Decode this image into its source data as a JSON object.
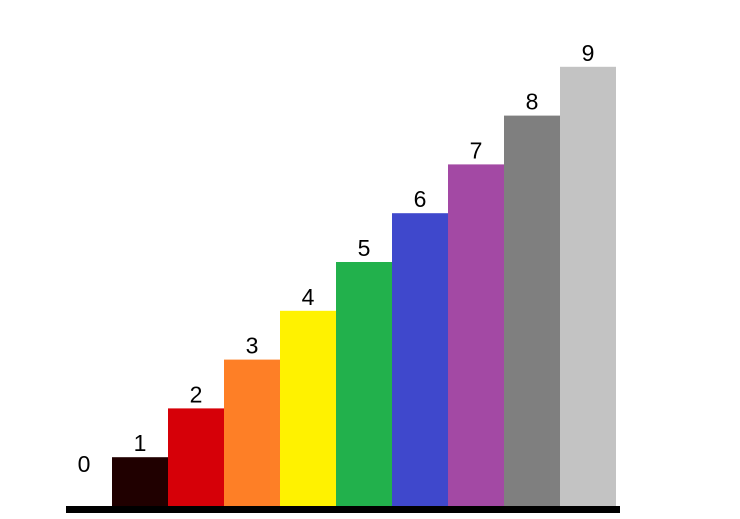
{
  "chart_data": {
    "type": "bar",
    "title": "",
    "xlabel": "",
    "ylabel": "",
    "categories": [
      "0",
      "1",
      "2",
      "3",
      "4",
      "5",
      "6",
      "7",
      "8",
      "9"
    ],
    "values": [
      0,
      1,
      2,
      3,
      4,
      5,
      6,
      7,
      8,
      9
    ],
    "data_labels": [
      "0",
      "1",
      "2",
      "3",
      "4",
      "5",
      "6",
      "7",
      "8",
      "9"
    ],
    "colors": [
      "#000000",
      "#200000",
      "#d60008",
      "#fe7f26",
      "#fff200",
      "#22b14c",
      "#3f48cc",
      "#a349a4",
      "#7f7f7f",
      "#c3c3c3"
    ],
    "axis_color": "#000000",
    "ylim": [
      0,
      9
    ],
    "grid": false,
    "legend": "none"
  }
}
